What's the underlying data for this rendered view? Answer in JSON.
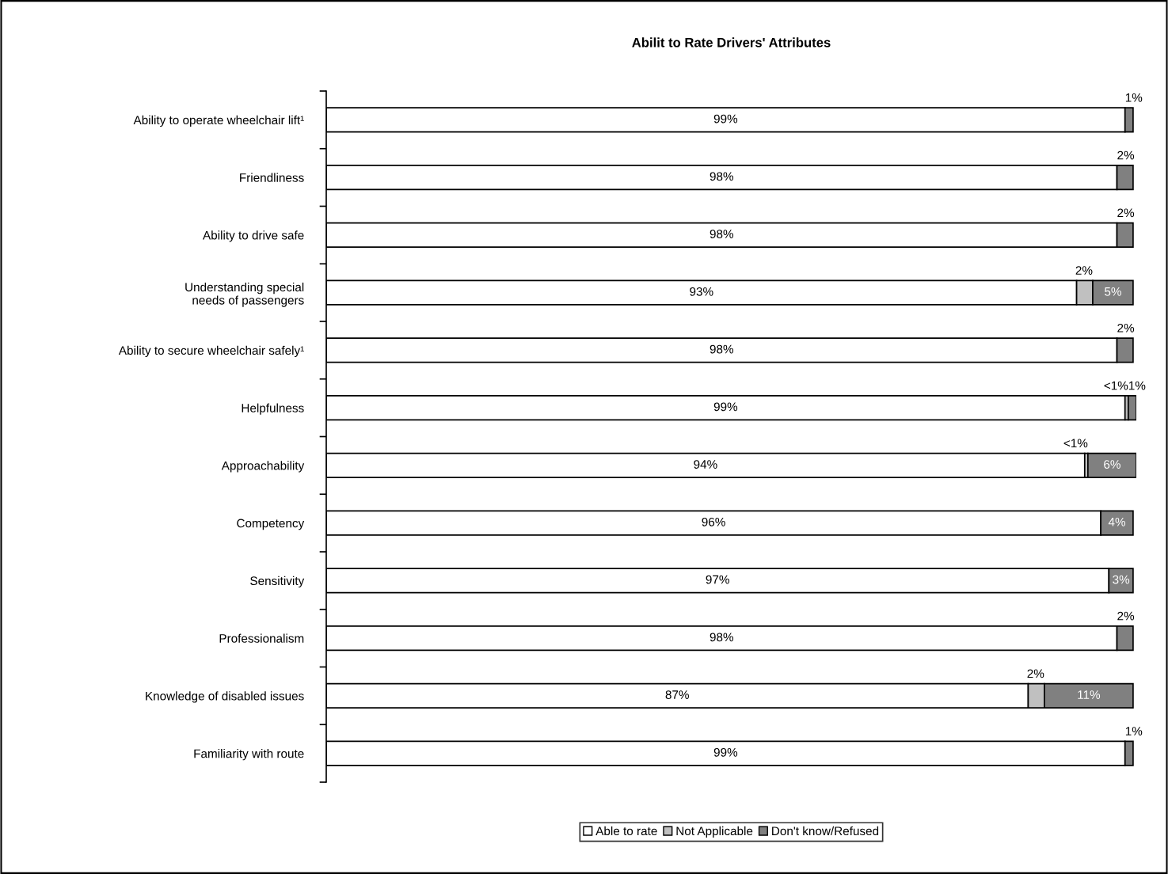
{
  "chart_data": {
    "type": "bar",
    "orientation": "horizontal",
    "stacked": true,
    "title": "Abilit to Rate Drivers' Attributes",
    "categories": [
      "Ability to operate wheelchair lift¹",
      "Friendliness",
      "Ability to drive safe",
      "Understanding special\nneeds of passengers",
      "Ability to secure wheelchair safely¹",
      "Helpfulness",
      "Approachability",
      "Competency",
      "Sensitivity",
      "Professionalism",
      "Knowledge of disabled issues",
      "Familiarity with route"
    ],
    "series": [
      {
        "name": "Able to rate",
        "color": "#ffffff",
        "values": [
          99,
          98,
          98,
          93,
          98,
          99,
          94,
          96,
          97,
          98,
          87,
          99
        ],
        "value_labels": [
          "99%",
          "98%",
          "98%",
          "93%",
          "98%",
          "99%",
          "94%",
          "96%",
          "97%",
          "98%",
          "87%",
          "99%"
        ]
      },
      {
        "name": "Not Applicable",
        "color": "#c0c0c0",
        "values": [
          null,
          null,
          null,
          2,
          null,
          0.4,
          0.4,
          null,
          null,
          null,
          2,
          null
        ],
        "value_labels": [
          null,
          null,
          null,
          "2%",
          null,
          "<1%",
          "<1%",
          null,
          null,
          null,
          "2%",
          null
        ]
      },
      {
        "name": "Don't know/Refused",
        "color": "#808080",
        "values": [
          1,
          2,
          2,
          5,
          2,
          1,
          6,
          4,
          3,
          2,
          11,
          1
        ],
        "value_labels": [
          "1%",
          "2%",
          "2%",
          "5%",
          "2%",
          "1%",
          "6%",
          "4%",
          "3%",
          "2%",
          "11%",
          "1%"
        ]
      }
    ],
    "legend": "bottom",
    "tick_labels": "y",
    "grid": false
  }
}
